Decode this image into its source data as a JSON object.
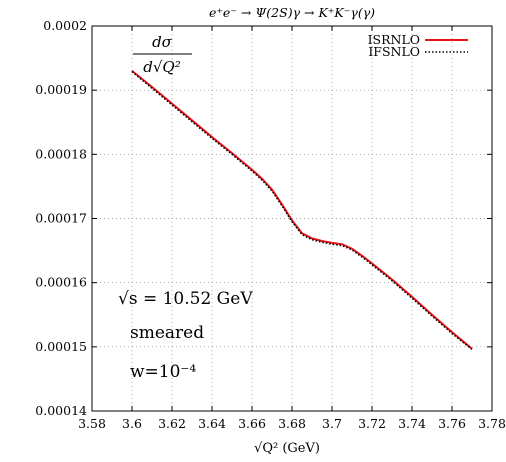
{
  "chart_data": {
    "type": "line",
    "title": "e⁺e⁻ → Ψ(2S)γ → K⁺K⁻γ(γ)",
    "xlabel": "√Q² (GeV)",
    "ylabel_numerator": "dσ",
    "ylabel_denominator": "d√Q²",
    "xlim": [
      3.58,
      3.78
    ],
    "ylim": [
      0.00014,
      0.0002
    ],
    "x_ticks": [
      "3.58",
      "3.6",
      "3.62",
      "3.64",
      "3.66",
      "3.68",
      "3.7",
      "3.72",
      "3.74",
      "3.76",
      "3.78"
    ],
    "y_ticks": [
      "0.00014",
      "0.00015",
      "0.00016",
      "0.00017",
      "0.00018",
      "0.00019",
      "0.0002"
    ],
    "grid": true,
    "legend_position": "top-right",
    "annotations": [
      "√s = 10.52 GeV",
      "smeared",
      "w=10⁻⁴"
    ],
    "series": [
      {
        "name": "ISRNLO",
        "color": "#e8141c",
        "style": "solid",
        "x": [
          3.6,
          3.61,
          3.62,
          3.63,
          3.64,
          3.65,
          3.66,
          3.665,
          3.67,
          3.675,
          3.68,
          3.685,
          3.69,
          3.695,
          3.7,
          3.705,
          3.71,
          3.715,
          3.72,
          3.73,
          3.74,
          3.75,
          3.76,
          3.77
        ],
        "values": [
          0.000193,
          0.0001905,
          0.0001879,
          0.0001853,
          0.0001827,
          0.0001802,
          0.0001776,
          0.0001762,
          0.0001745,
          0.0001722,
          0.0001697,
          0.0001677,
          0.0001669,
          0.0001665,
          0.0001662,
          0.000166,
          0.0001653,
          0.0001642,
          0.000163,
          0.0001605,
          0.0001578,
          0.000155,
          0.0001523,
          0.0001497
        ]
      },
      {
        "name": "IFSNLO",
        "color": "#000000",
        "style": "dotted",
        "x": [
          3.6,
          3.61,
          3.62,
          3.63,
          3.64,
          3.65,
          3.66,
          3.665,
          3.67,
          3.675,
          3.68,
          3.685,
          3.69,
          3.695,
          3.7,
          3.705,
          3.71,
          3.715,
          3.72,
          3.73,
          3.74,
          3.75,
          3.76,
          3.77
        ],
        "values": [
          0.0001929,
          0.0001903,
          0.0001877,
          0.0001851,
          0.0001825,
          0.00018,
          0.0001774,
          0.000176,
          0.0001743,
          0.000172,
          0.0001695,
          0.0001675,
          0.0001667,
          0.0001663,
          0.000166,
          0.0001658,
          0.0001651,
          0.000164,
          0.0001628,
          0.0001603,
          0.0001576,
          0.0001548,
          0.0001521,
          0.0001496
        ]
      }
    ]
  }
}
